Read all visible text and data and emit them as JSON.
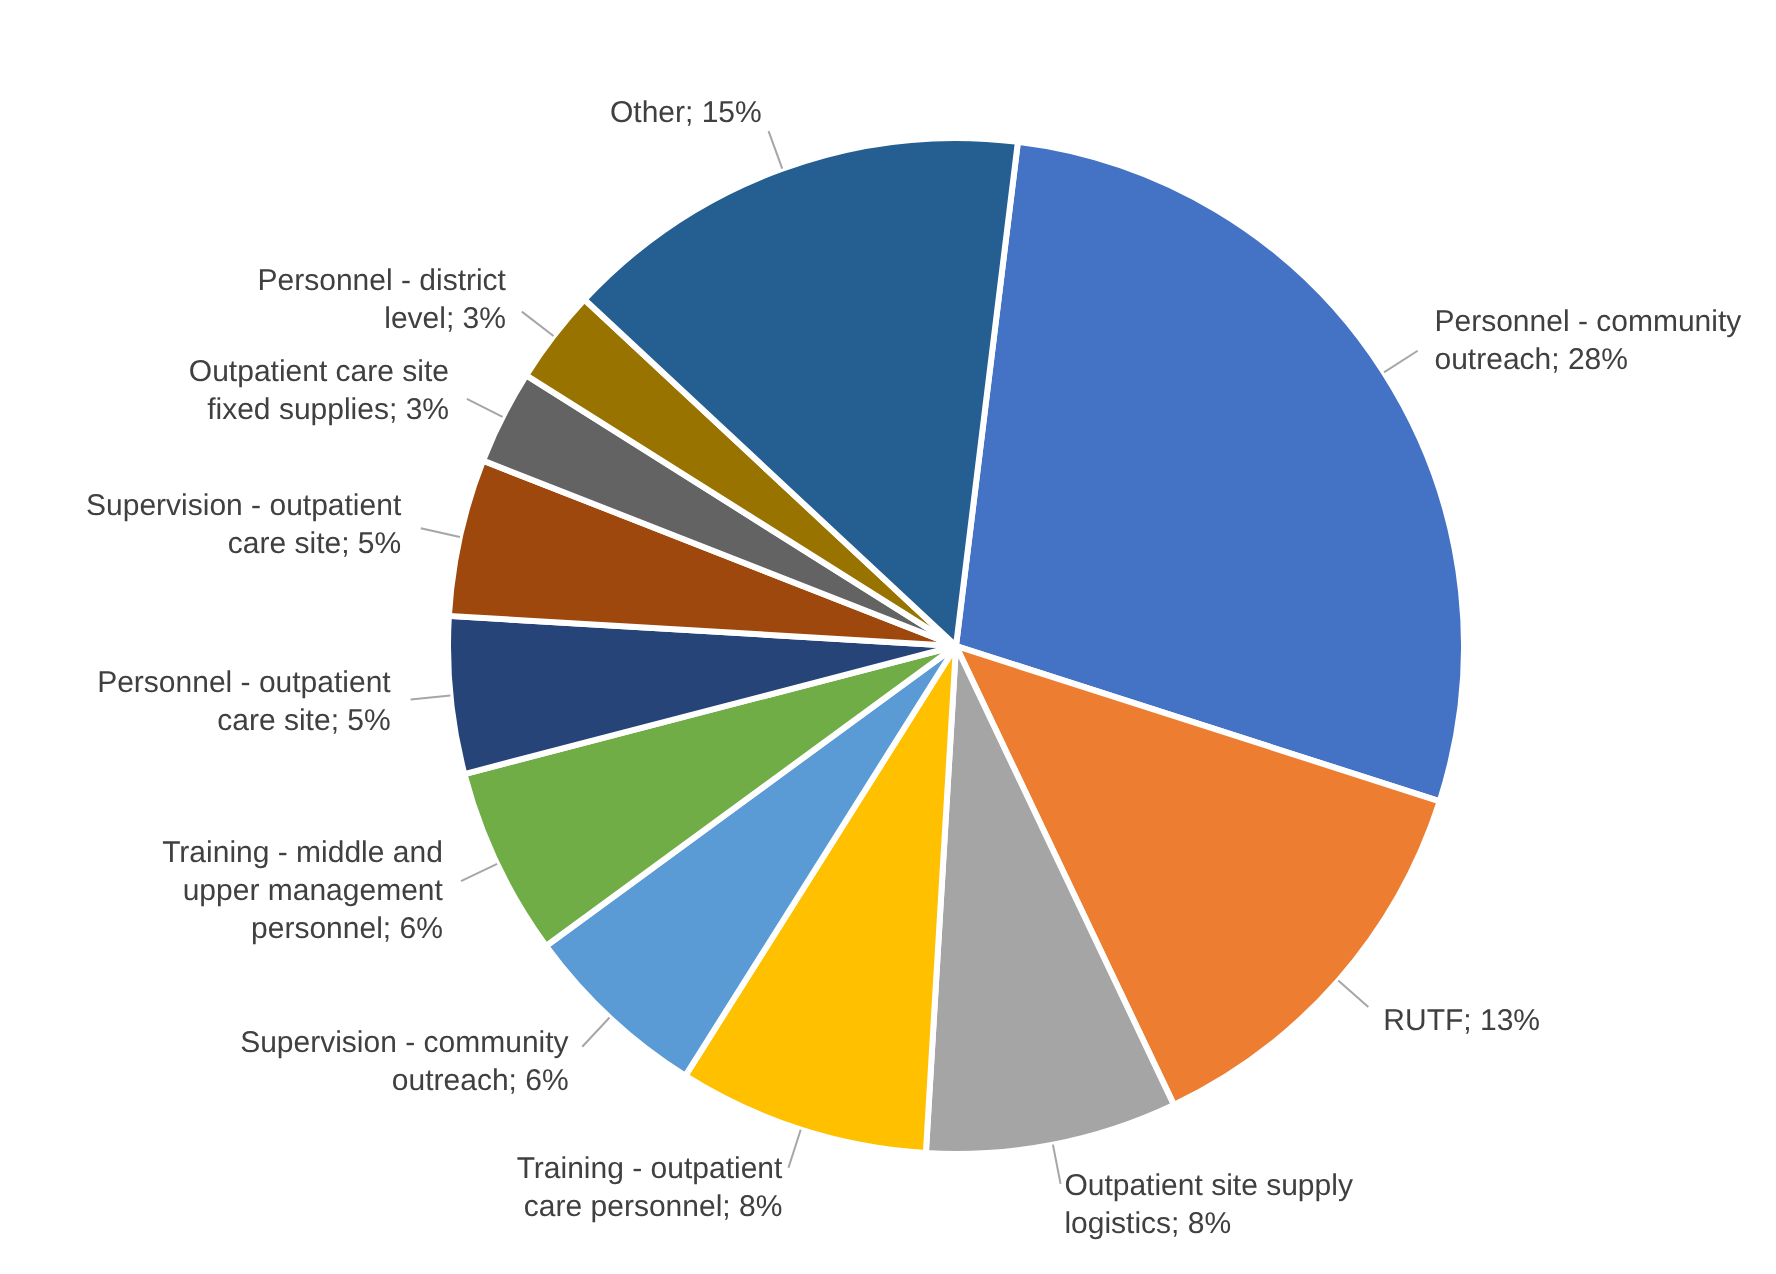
{
  "chart_data": {
    "type": "pie",
    "categories": [
      "Personnel - community outreach",
      "RUTF",
      "Outpatient site supply logistics",
      "Training - outpatient care personnel",
      "Supervision - community outreach",
      "Training - middle and upper management personnel",
      "Personnel - outpatient care site",
      "Supervision - outpatient care site",
      "Outpatient care site fixed supplies",
      "Personnel - district level",
      "Other"
    ],
    "values": [
      28,
      13,
      8,
      8,
      6,
      6,
      5,
      5,
      3,
      3,
      15
    ],
    "value_labels": [
      "28%",
      "13%",
      "8%",
      "8%",
      "6%",
      "6%",
      "5%",
      "5%",
      "3%",
      "3%",
      "15%"
    ],
    "colors": [
      "#4472c4",
      "#ed7d31",
      "#a5a5a5",
      "#ffc000",
      "#5b9bd5",
      "#70ad47",
      "#264478",
      "#9e480e",
      "#636363",
      "#997300",
      "#255e91"
    ],
    "legend": false
  }
}
